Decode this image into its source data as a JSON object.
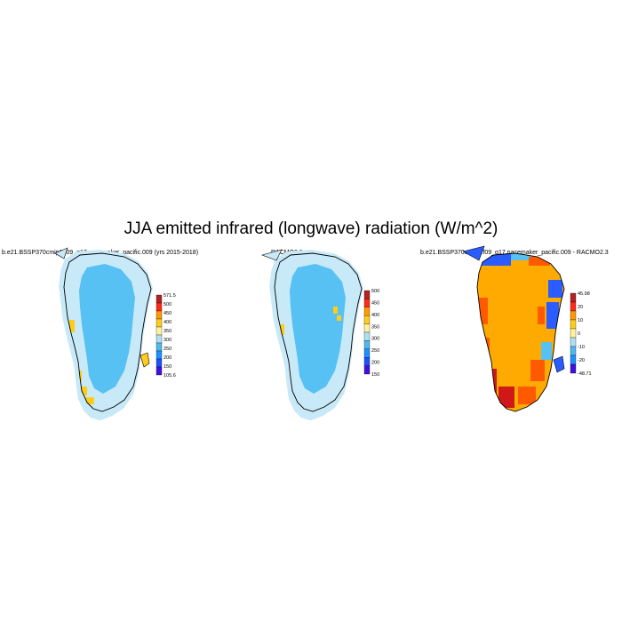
{
  "figure": {
    "title": "JJA emitted infrared (longwave) radiation (W/m^2)"
  },
  "panels": [
    {
      "title": "b.e21.BSSP370cmip6.f09_g17.pacemaker_pacific.009 (yrs 2015-2018)",
      "colorbar": {
        "labels": [
          "571.5",
          "500",
          "450",
          "400",
          "350",
          "300",
          "250",
          "200",
          "150",
          "105.6"
        ],
        "colors": [
          "#b22222",
          "#ff2a1a",
          "#ff9900",
          "#ffcc1a",
          "#fff29e",
          "#b0e0f0",
          "#50b8f0",
          "#1e90ff",
          "#1e50ff",
          "#4010e0"
        ]
      }
    },
    {
      "title": "RACMO2.3",
      "colorbar": {
        "labels": [
          "500",
          "450",
          "400",
          "350",
          "300",
          "250",
          "200",
          "150"
        ],
        "colors": [
          "#b22222",
          "#ff2a1a",
          "#ff9900",
          "#ffcc1a",
          "#fff29e",
          "#b0e0f0",
          "#50b8f0",
          "#1e90ff",
          "#1e50ff",
          "#4010e0"
        ]
      }
    },
    {
      "title": "b.e21.BSSP370cmip6.f09_g17.pacemaker_pacific.009 - RACMO2.3",
      "colorbar": {
        "labels": [
          "45.98",
          "20",
          "10",
          "0",
          "-10",
          "-20",
          "-48.71"
        ],
        "colors": [
          "#b22222",
          "#ff2a1a",
          "#ff9900",
          "#ffcc1a",
          "#fff29e",
          "#b0e0f0",
          "#50b8f0",
          "#1e90ff",
          "#4010e0"
        ]
      }
    }
  ],
  "map_colors": {
    "ice_sheet": "#56c1f2",
    "coastal_band": "#c8e9f8",
    "warm_margin": "#ffcc1a",
    "diff_interior": "#ffaa00",
    "diff_high": "#ff5a00",
    "diff_max": "#d01818",
    "diff_low": "#2a5cff",
    "coastline": "#000000"
  }
}
